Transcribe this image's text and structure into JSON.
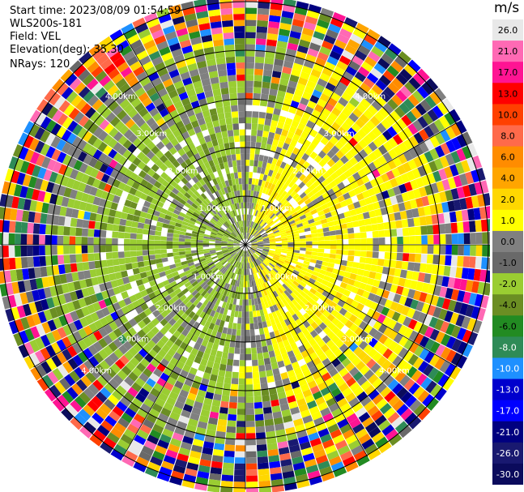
{
  "header": {
    "start_time": "Start time: 2023/08/09 01:54:59",
    "instrument": "WLS200s-181",
    "field": "Field: VEL",
    "elevation": "Elevation(deg): 35.30",
    "nrays": "NRays: 120"
  },
  "chart_data": {
    "type": "heatmap",
    "projection": "polar PPI",
    "field": "VEL",
    "nrays": 120,
    "range_labels": [
      "1.00km",
      "2.00km",
      "3.00km",
      "4.00km"
    ],
    "colorbar": {
      "unit": "m/s",
      "ticks": [
        "26.0",
        "21.0",
        "17.0",
        "13.0",
        "10.0",
        "8.0",
        "6.0",
        "4.0",
        "2.0",
        "1.0",
        "0.0",
        "-1.0",
        "-2.0",
        "-4.0",
        "-6.0",
        "-8.0",
        "-10.0",
        "-13.0",
        "-17.0",
        "-21.0",
        "-26.0",
        "-30.0"
      ],
      "colors": [
        "#e8e8e8",
        "#ff69b4",
        "#ff1493",
        "#ff0000",
        "#ff4000",
        "#ff6a4a",
        "#ff8c00",
        "#ffa500",
        "#ffd700",
        "#ffff00",
        "#808080",
        "#696969",
        "#9acd32",
        "#6b8e23",
        "#228b22",
        "#2e8b57",
        "#1e90ff",
        "#0000cd",
        "#0000ff",
        "#000080",
        "#191970",
        "#0b0b5c"
      ]
    }
  }
}
